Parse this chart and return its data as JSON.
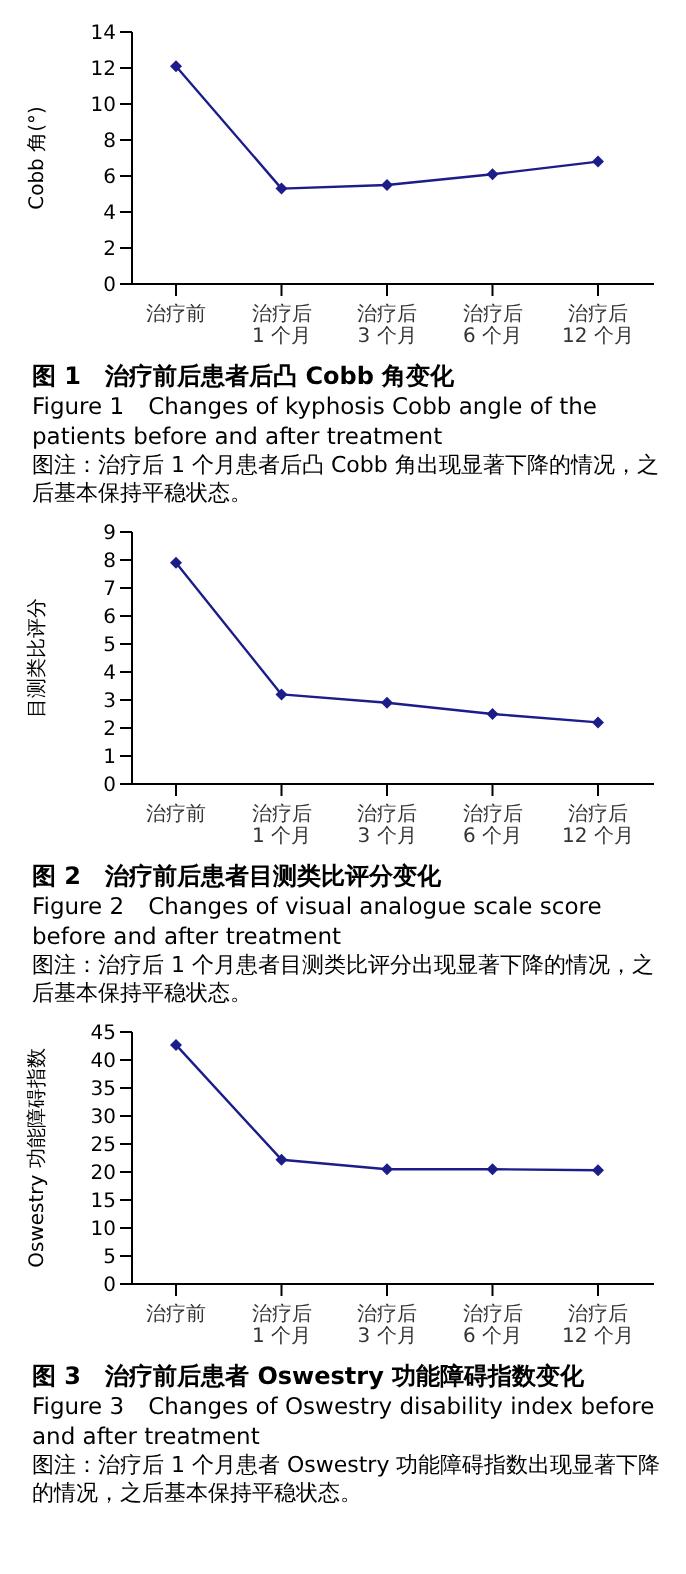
{
  "chart_data": [
    {
      "type": "line",
      "title": "图 1　治疗前后患者后凸 Cobb 角变化",
      "subtitle": "Figure 1　Changes of kyphosis Cobb angle of the patients before and after treatment",
      "ylabel": "Cobb 角(°)",
      "categories": [
        "治疗前",
        "治疗后 1 个月",
        "治疗后 3 个月",
        "治疗后 6 个月",
        "治疗后 12 个月"
      ],
      "series": [
        {
          "color": "#1c1c8a",
          "values": [
            12.1,
            5.3,
            5.5,
            6.1,
            6.8
          ]
        }
      ],
      "ylim": [
        0,
        14
      ],
      "yticks": [
        0,
        2,
        4,
        6,
        8,
        10,
        12,
        14
      ],
      "grid": false,
      "legend": false,
      "marker": "diamond",
      "line_style": "solid",
      "annotations": [
        "图注：治疗后 1 个月患者后凸 Cobb 角出现显著下降的情况，之后基本保持平稳状态。"
      ]
    },
    {
      "type": "line",
      "title": "图 2　治疗前后患者目测类比评分变化",
      "subtitle": "Figure 2　Changes of visual analogue scale score before and after treatment",
      "ylabel": "目测类比评分",
      "categories": [
        "治疗前",
        "治疗后 1 个月",
        "治疗后 3 个月",
        "治疗后 6 个月",
        "治疗后 12 个月"
      ],
      "series": [
        {
          "color": "#1c1c8a",
          "values": [
            7.9,
            3.2,
            2.9,
            2.5,
            2.2
          ]
        }
      ],
      "ylim": [
        0,
        9
      ],
      "yticks": [
        0,
        1,
        2,
        3,
        4,
        5,
        6,
        7,
        8,
        9
      ],
      "grid": false,
      "legend": false,
      "marker": "diamond",
      "line_style": "solid",
      "annotations": [
        "图注：治疗后 1 个月患者目测类比评分出现显著下降的情况，之后基本保持平稳状态。"
      ]
    },
    {
      "type": "line",
      "title": "图 3　治疗前后患者 Oswestry 功能障碍指数变化",
      "subtitle": "Figure 3　Changes of Oswestry disability index before and after treatment",
      "ylabel": "Oswestry 功能障碍指数",
      "categories": [
        "治疗前",
        "治疗后 1 个月",
        "治疗后 3 个月",
        "治疗后 6 个月",
        "治疗后 12 个月"
      ],
      "series": [
        {
          "color": "#1c1c8a",
          "values": [
            42.7,
            22.2,
            20.5,
            20.5,
            20.3
          ]
        }
      ],
      "ylim": [
        0,
        45
      ],
      "yticks": [
        0,
        5,
        10,
        15,
        20,
        25,
        30,
        35,
        40,
        45
      ],
      "grid": false,
      "legend": false,
      "marker": "diamond",
      "line_style": "solid",
      "annotations": [
        "图注：治疗后 1 个月患者 Oswestry 功能障碍指数出现显著下降的情况，之后基本保持平稳状态。"
      ]
    }
  ]
}
